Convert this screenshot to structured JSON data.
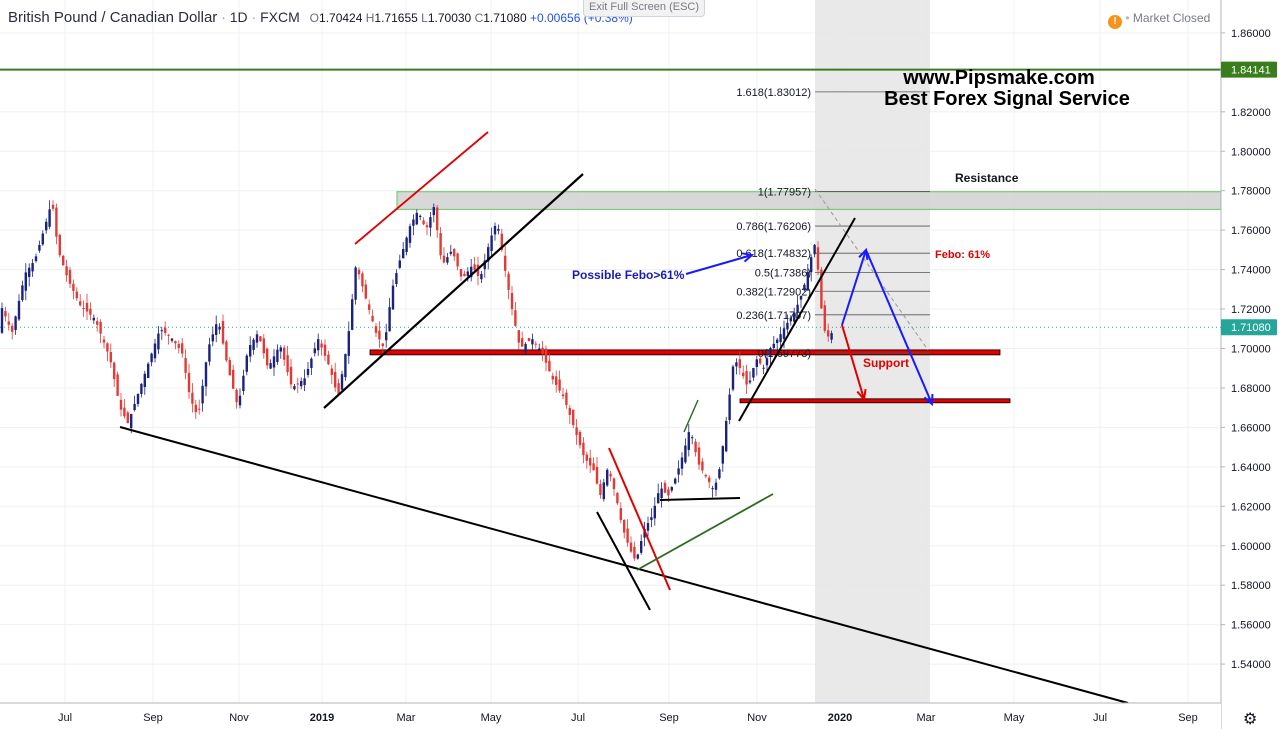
{
  "header": {
    "symbol": "British Pound / Canadian Dollar",
    "interval": "1D",
    "exchange": "FXCM",
    "open": "1.70424",
    "high": "1.71655",
    "low": "1.70030",
    "close": "1.71080",
    "change": "+0.00656 (+0.38%)",
    "market_status": "Market Closed",
    "exit_fullscreen": "Exit Full Screen (ESC)"
  },
  "watermark": {
    "line1": "www.Pipsmake.com",
    "line2": "Best Forex Signal Service"
  },
  "colors": {
    "bull": "#1a237e",
    "bear": "#e53935",
    "grid": "#eef0f3",
    "green_line": "#3a7d1c"
  },
  "chart_data": {
    "type": "candlestick",
    "ylim": [
      1.52,
      1.87
    ],
    "price_ticks": [
      "1.86000",
      "1.82000",
      "1.80000",
      "1.78000",
      "1.76000",
      "1.74000",
      "1.72000",
      "1.70000",
      "1.68000",
      "1.66000",
      "1.64000",
      "1.62000",
      "1.60000",
      "1.58000",
      "1.56000",
      "1.54000"
    ],
    "time_labels": [
      "Jul",
      "Sep",
      "Nov",
      "2019",
      "Mar",
      "May",
      "Jul",
      "Sep",
      "Nov",
      "2020",
      "Mar",
      "May",
      "Jul",
      "Sep"
    ],
    "price_markers": [
      {
        "label": "1.84141",
        "value": 1.84141,
        "color": "#3a7d1c"
      },
      {
        "label": "1.71080",
        "value": 1.7108,
        "color": "#26a69a"
      }
    ],
    "fibonacci": [
      {
        "label": "1.618(1.83012)",
        "value": 1.83012
      },
      {
        "label": "1(1.77957)",
        "value": 1.77957
      },
      {
        "label": "0.786(1.76206)",
        "value": 1.76206
      },
      {
        "label": "0.618(1.74832)",
        "value": 1.74832
      },
      {
        "label": "0.5(1.7386)",
        "value": 1.7386
      },
      {
        "label": "0.382(1.72902)",
        "value": 1.72902
      },
      {
        "label": "0.236(1.71707)",
        "value": 1.71707
      },
      {
        "label": "0(1.69773)",
        "value": 1.69773
      }
    ],
    "annotations": {
      "resistance": "Resistance",
      "support": "Support",
      "febo": "Febo: 61%",
      "possible_febo": "Possible Febo>61%"
    },
    "series_path": [
      [
        0,
        1.723
      ],
      [
        12,
        1.708
      ],
      [
        25,
        1.738
      ],
      [
        35,
        1.745
      ],
      [
        45,
        1.762
      ],
      [
        52,
        1.775
      ],
      [
        58,
        1.75
      ],
      [
        68,
        1.735
      ],
      [
        80,
        1.722
      ],
      [
        95,
        1.715
      ],
      [
        110,
        1.695
      ],
      [
        120,
        1.67
      ],
      [
        128,
        1.662
      ],
      [
        140,
        1.68
      ],
      [
        150,
        1.695
      ],
      [
        160,
        1.71
      ],
      [
        172,
        1.705
      ],
      [
        182,
        1.698
      ],
      [
        190,
        1.675
      ],
      [
        198,
        1.665
      ],
      [
        208,
        1.7
      ],
      [
        218,
        1.715
      ],
      [
        228,
        1.69
      ],
      [
        238,
        1.67
      ],
      [
        248,
        1.7
      ],
      [
        258,
        1.708
      ],
      [
        268,
        1.69
      ],
      [
        280,
        1.702
      ],
      [
        292,
        1.68
      ],
      [
        305,
        1.685
      ],
      [
        318,
        1.705
      ],
      [
        330,
        1.69
      ],
      [
        338,
        1.675
      ],
      [
        348,
        1.705
      ],
      [
        356,
        1.743
      ],
      [
        366,
        1.725
      ],
      [
        376,
        1.708
      ],
      [
        384,
        1.7
      ],
      [
        392,
        1.73
      ],
      [
        400,
        1.745
      ],
      [
        410,
        1.762
      ],
      [
        418,
        1.77
      ],
      [
        426,
        1.76
      ],
      [
        434,
        1.772
      ],
      [
        442,
        1.742
      ],
      [
        452,
        1.75
      ],
      [
        462,
        1.735
      ],
      [
        472,
        1.742
      ],
      [
        480,
        1.735
      ],
      [
        490,
        1.755
      ],
      [
        497,
        1.765
      ],
      [
        505,
        1.74
      ],
      [
        512,
        1.72
      ],
      [
        520,
        1.7
      ],
      [
        532,
        1.705
      ],
      [
        542,
        1.698
      ],
      [
        552,
        1.685
      ],
      [
        564,
        1.675
      ],
      [
        574,
        1.66
      ],
      [
        584,
        1.645
      ],
      [
        594,
        1.638
      ],
      [
        600,
        1.625
      ],
      [
        608,
        1.64
      ],
      [
        616,
        1.625
      ],
      [
        622,
        1.61
      ],
      [
        630,
        1.598
      ],
      [
        636,
        1.592
      ],
      [
        644,
        1.608
      ],
      [
        652,
        1.615
      ],
      [
        660,
        1.63
      ],
      [
        668,
        1.625
      ],
      [
        676,
        1.635
      ],
      [
        684,
        1.648
      ],
      [
        690,
        1.66
      ],
      [
        698,
        1.642
      ],
      [
        706,
        1.635
      ],
      [
        714,
        1.628
      ],
      [
        720,
        1.64
      ],
      [
        728,
        1.67
      ],
      [
        734,
        1.695
      ],
      [
        740,
        1.69
      ],
      [
        748,
        1.68
      ],
      [
        756,
        1.695
      ],
      [
        764,
        1.69
      ],
      [
        770,
        1.7
      ],
      [
        778,
        1.705
      ],
      [
        786,
        1.712
      ],
      [
        794,
        1.718
      ],
      [
        800,
        1.725
      ],
      [
        806,
        1.735
      ],
      [
        812,
        1.748
      ],
      [
        816,
        1.755
      ],
      [
        820,
        1.725
      ],
      [
        826,
        1.705
      ],
      [
        832,
        1.708
      ]
    ]
  }
}
